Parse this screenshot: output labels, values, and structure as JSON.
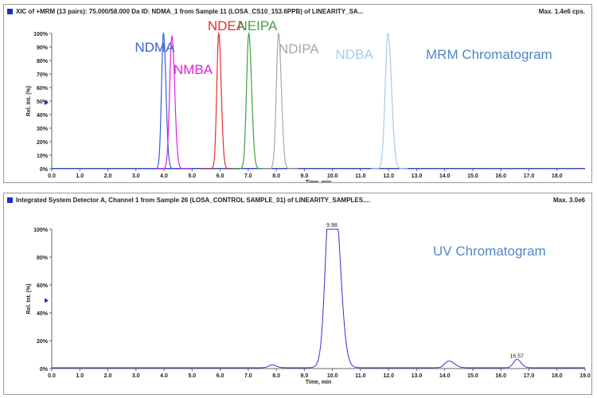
{
  "panels": [
    {
      "header": "XIC of +MRM (13 pairs): 75.000/58.000 Da ID: NDMA_1 from Sample 11 (LOSA_CS10_153.6PPB) of LINEARITY_SA...",
      "max": "Max. 1.4e6 cps."
    },
    {
      "header": "Integrated System Detector A, Channel 1 from Sample 26 (LOSA_CONTROL SAMPLE_01) of LINEARITY_SAMPLES....",
      "max": "Max. 3.0e6"
    }
  ],
  "chart_data": [
    {
      "type": "line",
      "title": "MRM Chromatogram",
      "xlabel": "Time, min",
      "ylabel": "Rel. Int. (%)",
      "xlim": [
        0,
        19.0
      ],
      "ylim": [
        0,
        100
      ],
      "xticks": [
        "0.0",
        "1.0",
        "2.0",
        "3.0",
        "4.0",
        "5.0",
        "6.0",
        "7.0",
        "8.0",
        "9.0",
        "10.0",
        "11.0",
        "12.0",
        "13.0",
        "14.0",
        "15.0",
        "16.0",
        "17.0",
        "18.0"
      ],
      "yticks": [
        "0%",
        "10%",
        "20%",
        "30%",
        "40%",
        "50%",
        "60%",
        "70%",
        "80%",
        "90%",
        "100%"
      ],
      "series": [
        {
          "name": "NDMA",
          "color": "#3a5fcd",
          "peak_rt": 3.98,
          "height": 100,
          "width": 0.07
        },
        {
          "name": "NMBA",
          "color": "#e020e0",
          "peak_rt": 4.28,
          "height": 98,
          "width": 0.08
        },
        {
          "name": "NDEA",
          "color": "#e03030",
          "peak_rt": 5.95,
          "height": 100,
          "width": 0.07
        },
        {
          "name": "NEIPA",
          "color": "#40a040",
          "peak_rt": 7.02,
          "height": 100,
          "width": 0.08
        },
        {
          "name": "NDIPA",
          "color": "#a8a8a8",
          "peak_rt": 8.08,
          "height": 100,
          "width": 0.08
        },
        {
          "name": "NDBA",
          "color": "#a8cbe8",
          "peak_rt": 11.98,
          "height": 100,
          "width": 0.1
        }
      ]
    },
    {
      "type": "line",
      "title": "UV Chromatogram",
      "xlabel": "Time, min",
      "ylabel": "Rel. Int. (%)",
      "xlim": [
        0,
        19.0
      ],
      "ylim": [
        0,
        100
      ],
      "xticks": [
        "0.0",
        "1.0",
        "2.0",
        "3.0",
        "4.0",
        "5.0",
        "6.0",
        "7.0",
        "8.0",
        "9.0",
        "10.0",
        "11.0",
        "12.0",
        "13.0",
        "14.0",
        "15.0",
        "16.0",
        "17.0",
        "18.0",
        "19.0"
      ],
      "yticks": [
        "0%",
        "20%",
        "40%",
        "60%",
        "80%",
        "100%"
      ],
      "series": [
        {
          "name": "",
          "color": "#3333cc",
          "peaks": [
            {
              "rt": 9.98,
              "height": 100,
              "label": "9.98"
            },
            {
              "rt": 7.85,
              "height": 2,
              "label": ""
            },
            {
              "rt": 14.1,
              "height": 4,
              "label": ""
            },
            {
              "rt": 14.3,
              "height": 2,
              "label": ""
            },
            {
              "rt": 16.57,
              "height": 6,
              "label": "16.57"
            }
          ]
        }
      ]
    }
  ]
}
